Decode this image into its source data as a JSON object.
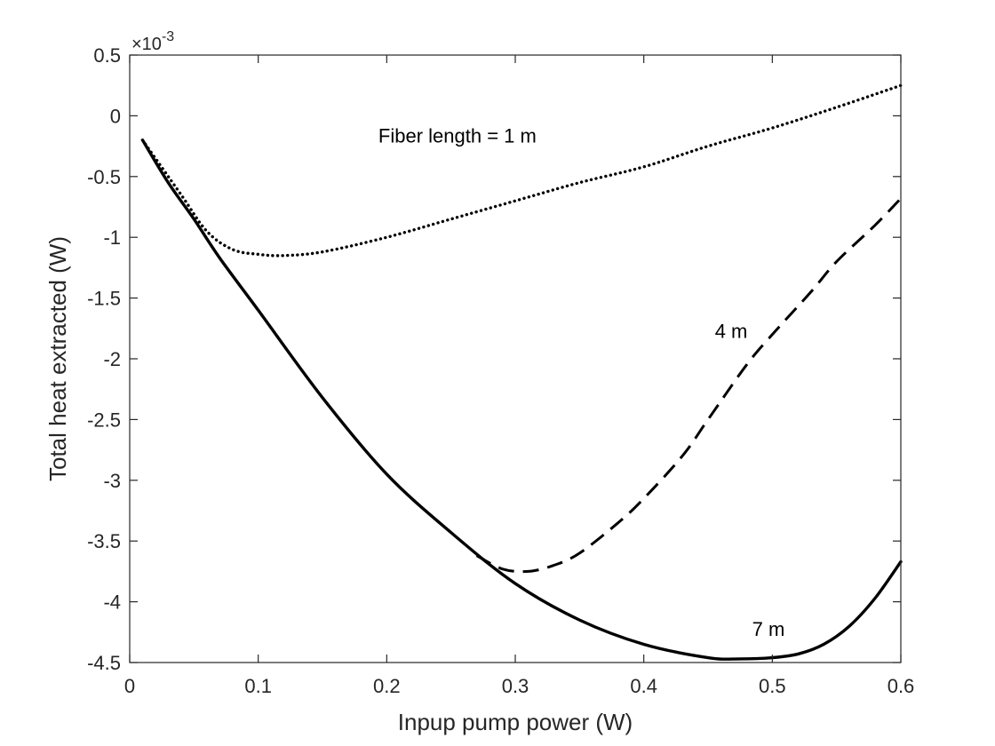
{
  "chart_data": {
    "type": "line",
    "xlabel": "Inpup pump power (W)",
    "ylabel": "Total heat extracted (W)",
    "xlim": [
      0,
      0.6
    ],
    "ylim": [
      -4.5,
      0.5
    ],
    "y_multiplier": "×10",
    "y_multiplier_exponent": "-3",
    "x_ticks": [
      0,
      0.1,
      0.2,
      0.3,
      0.4,
      0.5,
      0.6
    ],
    "x_tick_labels": [
      "0",
      "0.1",
      "0.2",
      "0.3",
      "0.4",
      "0.5",
      "0.6"
    ],
    "y_ticks": [
      0.5,
      0,
      -0.5,
      -1,
      -1.5,
      -2,
      -2.5,
      -3,
      -3.5,
      -4,
      -4.5
    ],
    "y_tick_labels": [
      "0.5",
      "0",
      "-0.5",
      "-1",
      "-1.5",
      "-2",
      "-2.5",
      "-3",
      "-3.5",
      "-4",
      "-4.5"
    ],
    "grid": false,
    "series": [
      {
        "label_text": "Fiber length = 1 m",
        "style": "dotted",
        "x": [
          0.01,
          0.04,
          0.06,
          0.08,
          0.1,
          0.12,
          0.15,
          0.2,
          0.25,
          0.3,
          0.35,
          0.4,
          0.45,
          0.5,
          0.55,
          0.6
        ],
        "y": [
          -0.2,
          -0.65,
          -0.95,
          -1.1,
          -1.14,
          -1.15,
          -1.12,
          -1.0,
          -0.85,
          -0.7,
          -0.55,
          -0.42,
          -0.25,
          -0.1,
          0.07,
          0.25
        ]
      },
      {
        "label_text": "4 m",
        "style": "dashed",
        "x": [
          0.27,
          0.29,
          0.31,
          0.33,
          0.35,
          0.38,
          0.4,
          0.43,
          0.45,
          0.48,
          0.5,
          0.53,
          0.55,
          0.58,
          0.6
        ],
        "y": [
          -3.62,
          -3.73,
          -3.75,
          -3.7,
          -3.6,
          -3.35,
          -3.15,
          -2.8,
          -2.5,
          -2.05,
          -1.8,
          -1.45,
          -1.2,
          -0.9,
          -0.68
        ]
      },
      {
        "label_text": "7 m",
        "style": "solid",
        "x": [
          0.01,
          0.03,
          0.05,
          0.07,
          0.1,
          0.15,
          0.2,
          0.25,
          0.3,
          0.35,
          0.4,
          0.45,
          0.475,
          0.5,
          0.52,
          0.54,
          0.56,
          0.58,
          0.6
        ],
        "y": [
          -0.2,
          -0.55,
          -0.85,
          -1.17,
          -1.6,
          -2.32,
          -2.95,
          -3.43,
          -3.85,
          -4.15,
          -4.35,
          -4.46,
          -4.47,
          -4.46,
          -4.43,
          -4.35,
          -4.2,
          -3.97,
          -3.67
        ]
      }
    ],
    "annotations": [
      {
        "text": "Fiber length = 1 m",
        "x": 0.255,
        "y": -0.22
      },
      {
        "text": "4 m",
        "x": 0.468,
        "y": -1.83
      },
      {
        "text": "7 m",
        "x": 0.497,
        "y": -4.28
      }
    ]
  }
}
